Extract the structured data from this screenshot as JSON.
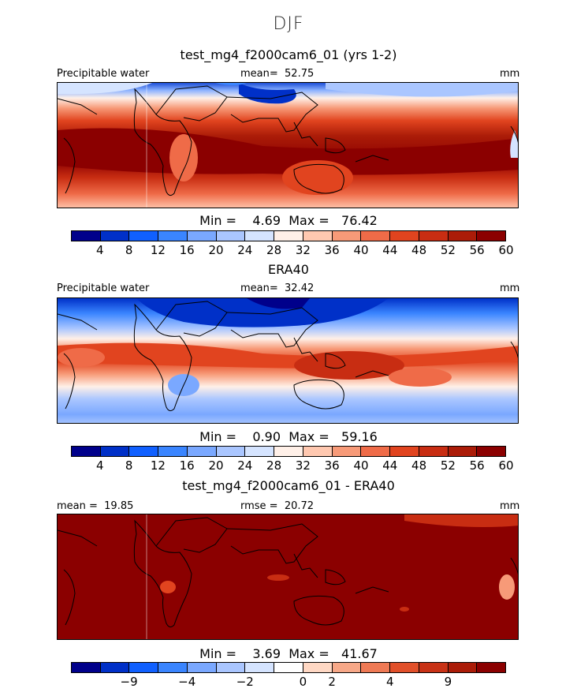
{
  "figure_title": "DJF",
  "panels": [
    {
      "title": "test_mg4_f2000cam6_01 (yrs 1-2)",
      "left_label": "Precipitable water",
      "center_label": "mean=  52.75",
      "right_label": "mm",
      "min_max": "Min =    4.69  Max =   76.42",
      "colorbar": {
        "colors": [
          "#00008b",
          "#0030c8",
          "#1060ff",
          "#3a85ff",
          "#7aa8ff",
          "#aac6ff",
          "#d5e4ff",
          "#fff0e8",
          "#ffc8b0",
          "#f79a78",
          "#ef6b48",
          "#e1441f",
          "#c82d12",
          "#ab1c08",
          "#8b0000"
        ],
        "tick_labels": [
          "4",
          "8",
          "12",
          "16",
          "20",
          "24",
          "28",
          "32",
          "36",
          "40",
          "44",
          "48",
          "52",
          "56",
          "60"
        ]
      }
    },
    {
      "title": "ERA40",
      "left_label": "Precipitable water",
      "center_label": "mean=  32.42",
      "right_label": "mm",
      "min_max": "Min =    0.90  Max =   59.16",
      "colorbar": {
        "colors": [
          "#00008b",
          "#0030c8",
          "#1060ff",
          "#3a85ff",
          "#7aa8ff",
          "#aac6ff",
          "#d5e4ff",
          "#fff0e8",
          "#ffc8b0",
          "#f79a78",
          "#ef6b48",
          "#e1441f",
          "#c82d12",
          "#ab1c08",
          "#8b0000"
        ],
        "tick_labels": [
          "4",
          "8",
          "12",
          "16",
          "20",
          "24",
          "28",
          "32",
          "36",
          "40",
          "44",
          "48",
          "52",
          "56",
          "60"
        ]
      }
    },
    {
      "title": "test_mg4_f2000cam6_01 - ERA40",
      "left_label": "mean =  19.85",
      "center_label": "rmse =  20.72",
      "right_label": "mm",
      "min_max": "Min =    3.69  Max =   41.67",
      "colorbar": {
        "colors": [
          "#00008b",
          "#0030c8",
          "#1060ff",
          "#3a85ff",
          "#7aa8ff",
          "#aac6ff",
          "#d5e4ff",
          "#ffffff",
          "#ffd8c4",
          "#f7a888",
          "#ef7a55",
          "#e1502a",
          "#c83216",
          "#ab1c08",
          "#8b0000"
        ],
        "tick_labels": [
          "−9",
          "−4",
          "−2",
          "0",
          "2",
          "4",
          "9"
        ]
      }
    }
  ]
}
